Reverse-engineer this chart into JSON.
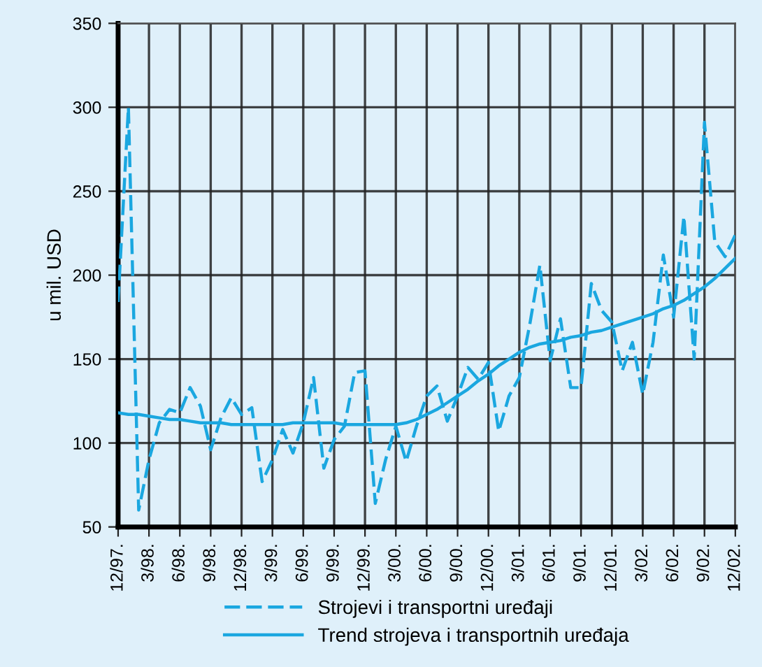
{
  "chart_data": {
    "type": "line",
    "ylabel": "u mil. USD",
    "ylim": [
      50,
      350
    ],
    "yticks": [
      50,
      100,
      150,
      200,
      250,
      300,
      350
    ],
    "categories": [
      "12/97.",
      null,
      null,
      "3/98.",
      null,
      null,
      "6/98.",
      null,
      null,
      "9/98.",
      null,
      null,
      "12/98.",
      null,
      null,
      "3/99.",
      null,
      null,
      "6/99.",
      null,
      null,
      "9/99.",
      null,
      null,
      "12/99.",
      null,
      null,
      "3/00.",
      null,
      null,
      "6/00.",
      null,
      null,
      "9/00.",
      null,
      null,
      "12/00.",
      null,
      null,
      "3/01.",
      null,
      null,
      "6/01.",
      null,
      null,
      "9/01.",
      null,
      null,
      "12/01.",
      null,
      null,
      "3/02.",
      null,
      null,
      "6/02.",
      null,
      null,
      "9/02.",
      null,
      null,
      "12/02."
    ],
    "grid": true,
    "legend": "bottom",
    "marker": "none",
    "series": [
      {
        "name": "Strojevi i transportni uređaji",
        "color": "#1aa7e0",
        "line_style": "dashed",
        "values": [
          184,
          300,
          60,
          90,
          112,
          120,
          118,
          133,
          122,
          96,
          115,
          127,
          117,
          121,
          77,
          90,
          108,
          94,
          112,
          139,
          85,
          102,
          110,
          142,
          143,
          64,
          90,
          110,
          89,
          110,
          128,
          134,
          113,
          128,
          145,
          138,
          148,
          107,
          128,
          139,
          170,
          206,
          149,
          174,
          133,
          133,
          195,
          179,
          172,
          143,
          160,
          129,
          160,
          212,
          175,
          235,
          150,
          291,
          220,
          211,
          224
        ]
      },
      {
        "name": "Trend strojeva i transportnih uređaja",
        "color": "#1aa7e0",
        "line_style": "solid",
        "values": [
          118,
          117,
          117,
          116,
          115,
          114,
          114,
          113,
          112,
          112,
          112,
          111,
          111,
          111,
          111,
          111,
          111,
          112,
          112,
          112,
          112,
          112,
          111,
          111,
          111,
          111,
          111,
          111,
          112,
          114,
          117,
          120,
          124,
          128,
          132,
          137,
          141,
          146,
          150,
          154,
          157,
          159,
          160,
          161,
          163,
          164,
          166,
          167,
          169,
          171,
          173,
          175,
          177,
          180,
          182,
          185,
          189,
          193,
          198,
          204,
          210
        ]
      }
    ]
  }
}
